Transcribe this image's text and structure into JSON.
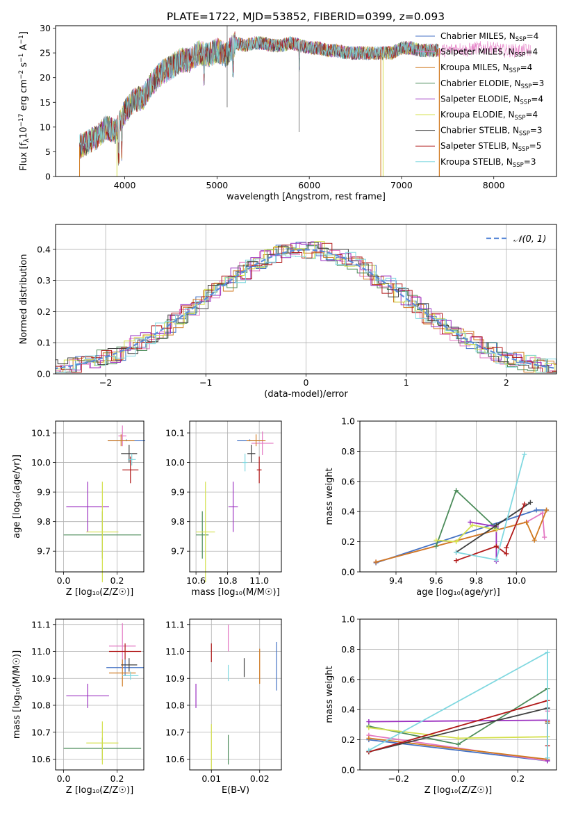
{
  "figure": {
    "title": "PLATE=1722, MJD=53852, FIBERID=0399, z=0.093"
  },
  "legend": [
    {
      "label": "Chabrier MILES, N",
      "sub": "SSP",
      "suffix": "=4",
      "color": "#4472c4"
    },
    {
      "label": "Salpeter MILES, N",
      "sub": "SSP",
      "suffix": "=4",
      "color": "#e377c2"
    },
    {
      "label": "Kroupa MILES, N",
      "sub": "SSP",
      "suffix": "=4",
      "color": "#d07a20"
    },
    {
      "label": "Chabrier ELODIE, N",
      "sub": "SSP",
      "suffix": "=3",
      "color": "#4c8c5a"
    },
    {
      "label": "Salpeter ELODIE, N",
      "sub": "SSP",
      "suffix": "=4",
      "color": "#9b30c0"
    },
    {
      "label": "Kroupa ELODIE, N",
      "sub": "SSP",
      "suffix": "=4",
      "color": "#d4e04c"
    },
    {
      "label": "Chabrier STELIB, N",
      "sub": "SSP",
      "suffix": "=3",
      "color": "#404040"
    },
    {
      "label": "Salpeter STELIB, N",
      "sub": "SSP",
      "suffix": "=5",
      "color": "#b01818"
    },
    {
      "label": "Kroupa STELIB, N",
      "sub": "SSP",
      "suffix": "=3",
      "color": "#80d8e0"
    }
  ],
  "chart_data": [
    {
      "id": "spectrum",
      "type": "line",
      "xlabel": "wavelength [Angstrom, rest frame]",
      "ylabel_parts": [
        "Flux [f",
        "λ",
        "10",
        "−17",
        " erg cm",
        "−2",
        " s",
        "−1",
        " A",
        "−1",
        "]"
      ],
      "xlim": [
        3250,
        8680
      ],
      "ylim": [
        0,
        30.5
      ],
      "xticks": [
        4000,
        5000,
        6000,
        7000,
        8000
      ],
      "yticks": [
        0,
        5,
        10,
        15,
        20,
        25,
        30
      ],
      "continuum_points": [
        [
          3510,
          6
        ],
        [
          3700,
          8
        ],
        [
          3800,
          10
        ],
        [
          3900,
          9
        ],
        [
          4000,
          13
        ],
        [
          4100,
          15.5
        ],
        [
          4200,
          16
        ],
        [
          4300,
          19
        ],
        [
          4400,
          21
        ],
        [
          4500,
          22
        ],
        [
          4600,
          23.5
        ],
        [
          4700,
          23.5
        ],
        [
          4800,
          25
        ],
        [
          4900,
          24.5
        ],
        [
          5000,
          25.5
        ],
        [
          5100,
          24.5
        ],
        [
          5200,
          27
        ],
        [
          5300,
          26.5
        ],
        [
          5400,
          27
        ],
        [
          5500,
          27
        ],
        [
          5600,
          26.5
        ],
        [
          5700,
          26.5
        ],
        [
          5800,
          27
        ],
        [
          5900,
          26.5
        ],
        [
          6000,
          26
        ],
        [
          6100,
          26
        ],
        [
          6200,
          25.5
        ],
        [
          6300,
          25.5
        ],
        [
          6400,
          25
        ],
        [
          6500,
          25
        ],
        [
          6600,
          25
        ],
        [
          6700,
          25
        ],
        [
          6800,
          25
        ],
        [
          6900,
          25
        ],
        [
          7000,
          26
        ],
        [
          7100,
          26
        ],
        [
          7200,
          25.5
        ],
        [
          7300,
          25.5
        ],
        [
          7400,
          25.5
        ],
        [
          7500,
          25.5
        ],
        [
          7600,
          26
        ],
        [
          7700,
          25.5
        ],
        [
          7800,
          26
        ],
        [
          7900,
          26
        ],
        [
          8000,
          26
        ],
        [
          8100,
          25.5
        ],
        [
          8200,
          25.5
        ],
        [
          8300,
          25.5
        ],
        [
          8400,
          25.5
        ]
      ]
    },
    {
      "id": "residuals",
      "type": "step",
      "xlabel": "(data-model)/error",
      "ylabel": "Normed distribution",
      "xlim": [
        -2.5,
        2.5
      ],
      "ylim": [
        0,
        0.48
      ],
      "xticks": [
        -2,
        -1,
        0,
        1,
        2
      ],
      "xtick_labels": [
        "−2",
        "−1",
        "0",
        "1",
        "2"
      ],
      "yticks": [
        0.0,
        0.1,
        0.2,
        0.3,
        0.4
      ],
      "ytick_labels": [
        "0.0",
        "0.1",
        "0.2",
        "0.3",
        "0.4"
      ],
      "reference_label": "𝒩(0, 1)",
      "reference_color": "#5b8ad8"
    },
    {
      "id": "z-age",
      "type": "errorbar",
      "xlabel": "Z [log₁₀(Z/Z☉)]",
      "ylabel": "age  [log₁₀(age/yr)]",
      "xlim": [
        -0.03,
        0.3
      ],
      "ylim": [
        9.63,
        10.14
      ],
      "xticks": [
        0.0,
        0.2
      ],
      "xtick_labels": [
        "0.0",
        "0.2"
      ],
      "yticks": [
        9.7,
        9.8,
        9.9,
        10.0,
        10.1
      ],
      "ytick_labels": [
        "9.7",
        "9.8",
        "9.9",
        "10.0",
        "10.1"
      ],
      "points": [
        {
          "x": 0.235,
          "y": 10.075,
          "xerr": 0.07,
          "yerr": 0.003,
          "color": "#4472c4"
        },
        {
          "x": 0.22,
          "y": 10.09,
          "xerr": 0.015,
          "yerr": 0.035,
          "color": "#e377c2"
        },
        {
          "x": 0.215,
          "y": 10.075,
          "xerr": 0.05,
          "yerr": 0.02,
          "color": "#d07a20"
        },
        {
          "x": 0.145,
          "y": 9.755,
          "xerr": 0.145,
          "yerr": 0.08,
          "color": "#4c8c5a"
        },
        {
          "x": 0.09,
          "y": 9.85,
          "xerr": 0.08,
          "yerr": 0.085,
          "color": "#9b30c0"
        },
        {
          "x": 0.145,
          "y": 9.765,
          "xerr": 0.06,
          "yerr": 0.17,
          "color": "#d4e04c"
        },
        {
          "x": 0.245,
          "y": 10.03,
          "xerr": 0.03,
          "yerr": 0.03,
          "color": "#404040"
        },
        {
          "x": 0.25,
          "y": 9.975,
          "xerr": 0.03,
          "yerr": 0.045,
          "color": "#b01818"
        },
        {
          "x": 0.255,
          "y": 10.01,
          "xerr": 0.015,
          "yerr": 0.02,
          "color": "#80d8e0"
        }
      ]
    },
    {
      "id": "mass-age",
      "type": "errorbar",
      "xlabel": "mass [log₁₀(M/M☉)]",
      "ylabel": "",
      "xlim": [
        10.56,
        11.14
      ],
      "ylim": [
        9.63,
        10.14
      ],
      "xticks": [
        10.6,
        10.8,
        11.0
      ],
      "xtick_labels": [
        "10.6",
        "10.8",
        "11.0"
      ],
      "yticks": [
        9.7,
        9.8,
        9.9,
        10.0,
        10.1
      ],
      "ytick_labels": [
        "9.7",
        "9.8",
        "9.9",
        "10.0",
        "10.1"
      ],
      "points": [
        {
          "x": 10.94,
          "y": 10.075,
          "xerr": 0.08,
          "yerr": 0.003,
          "color": "#4472c4"
        },
        {
          "x": 11.02,
          "y": 10.065,
          "xerr": 0.07,
          "yerr": 0.04,
          "color": "#e377c2"
        },
        {
          "x": 10.98,
          "y": 10.075,
          "xerr": 0.06,
          "yerr": 0.02,
          "color": "#d07a20"
        },
        {
          "x": 10.64,
          "y": 9.755,
          "xerr": 0.04,
          "yerr": 0.08,
          "color": "#4c8c5a"
        },
        {
          "x": 10.835,
          "y": 9.85,
          "xerr": 0.03,
          "yerr": 0.085,
          "color": "#9b30c0"
        },
        {
          "x": 10.66,
          "y": 9.765,
          "xerr": 0.06,
          "yerr": 0.17,
          "color": "#d4e04c"
        },
        {
          "x": 10.95,
          "y": 10.03,
          "xerr": 0.025,
          "yerr": 0.03,
          "color": "#404040"
        },
        {
          "x": 11.0,
          "y": 9.975,
          "xerr": 0.015,
          "yerr": 0.045,
          "color": "#b01818"
        },
        {
          "x": 10.91,
          "y": 10.0,
          "xerr": 0.015,
          "yerr": 0.03,
          "color": "#80d8e0"
        }
      ]
    },
    {
      "id": "age-weight",
      "type": "line",
      "xlabel": "age  [log₁₀(age/yr)]",
      "ylabel": "mass weight",
      "xlim": [
        9.22,
        10.2
      ],
      "ylim": [
        0,
        1.0
      ],
      "xticks": [
        9.4,
        9.6,
        9.8,
        10.0
      ],
      "xtick_labels": [
        "9.4",
        "9.6",
        "9.8",
        "10.0"
      ],
      "yticks": [
        0.0,
        0.2,
        0.4,
        0.6,
        0.8,
        1.0
      ],
      "ytick_labels": [
        "0.0",
        "0.2",
        "0.4",
        "0.6",
        "0.8",
        "1.0"
      ],
      "series": [
        {
          "color": "#4472c4",
          "points": [
            [
              9.3,
              0.06
            ],
            [
              10.1,
              0.41
            ],
            [
              10.15,
              0.41
            ]
          ]
        },
        {
          "color": "#e377c2",
          "points": [
            [
              9.3,
              0.065
            ],
            [
              10.05,
              0.33
            ],
            [
              10.13,
              0.39
            ],
            [
              10.14,
              0.23
            ]
          ]
        },
        {
          "color": "#d07a20",
          "points": [
            [
              9.3,
              0.065
            ],
            [
              10.05,
              0.33
            ],
            [
              10.09,
              0.21
            ],
            [
              10.15,
              0.41
            ]
          ]
        },
        {
          "color": "#4c8c5a",
          "points": [
            [
              9.6,
              0.17
            ],
            [
              9.7,
              0.54
            ],
            [
              9.9,
              0.29
            ]
          ]
        },
        {
          "color": "#9b30c0",
          "points": [
            [
              9.9,
              0.07
            ],
            [
              9.9,
              0.3
            ],
            [
              9.77,
              0.33
            ]
          ]
        },
        {
          "color": "#d4e04c",
          "points": [
            [
              9.6,
              0.21
            ],
            [
              9.7,
              0.2
            ],
            [
              9.78,
              0.31
            ],
            [
              9.9,
              0.28
            ]
          ]
        },
        {
          "color": "#404040",
          "points": [
            [
              9.7,
              0.13
            ],
            [
              10.07,
              0.46
            ],
            [
              9.9,
              0.31
            ]
          ]
        },
        {
          "color": "#b01818",
          "points": [
            [
              9.7,
              0.075
            ],
            [
              9.9,
              0.17
            ],
            [
              9.95,
              0.12
            ],
            [
              9.95,
              0.16
            ],
            [
              10.04,
              0.45
            ]
          ]
        },
        {
          "color": "#80d8e0",
          "points": [
            [
              9.7,
              0.13
            ],
            [
              9.9,
              0.08
            ],
            [
              10.04,
              0.78
            ]
          ]
        }
      ]
    },
    {
      "id": "z-mass",
      "type": "errorbar",
      "xlabel": "Z [log₁₀(Z/Z☉)]",
      "ylabel": "mass [log₁₀(M/M☉)]",
      "xlim": [
        -0.03,
        0.3
      ],
      "ylim": [
        10.56,
        11.12
      ],
      "xticks": [
        0.0,
        0.2
      ],
      "xtick_labels": [
        "0.0",
        "0.2"
      ],
      "yticks": [
        10.6,
        10.7,
        10.8,
        10.9,
        11.0,
        11.1
      ],
      "ytick_labels": [
        "10.6",
        "10.7",
        "10.8",
        "10.9",
        "11.0",
        "11.1"
      ],
      "points": [
        {
          "x": 0.23,
          "y": 10.94,
          "xerr": 0.07,
          "yerr": 0.03,
          "color": "#4472c4"
        },
        {
          "x": 0.22,
          "y": 11.02,
          "xerr": 0.05,
          "yerr": 0.085,
          "color": "#e377c2"
        },
        {
          "x": 0.22,
          "y": 10.92,
          "xerr": 0.05,
          "yerr": 0.05,
          "color": "#d07a20"
        },
        {
          "x": 0.145,
          "y": 10.64,
          "xerr": 0.145,
          "yerr": 0.04,
          "color": "#4c8c5a"
        },
        {
          "x": 0.09,
          "y": 10.835,
          "xerr": 0.08,
          "yerr": 0.045,
          "color": "#9b30c0"
        },
        {
          "x": 0.145,
          "y": 10.66,
          "xerr": 0.06,
          "yerr": 0.08,
          "color": "#d4e04c"
        },
        {
          "x": 0.245,
          "y": 10.95,
          "xerr": 0.03,
          "yerr": 0.025,
          "color": "#404040"
        },
        {
          "x": 0.23,
          "y": 11.0,
          "xerr": 0.06,
          "yerr": 0.03,
          "color": "#b01818"
        },
        {
          "x": 0.25,
          "y": 10.91,
          "xerr": 0.03,
          "yerr": 0.015,
          "color": "#80d8e0"
        }
      ]
    },
    {
      "id": "ebv-mass",
      "type": "errorbar",
      "xlabel": "E(B-V)",
      "ylabel": "",
      "xlim": [
        0.0055,
        0.0245
      ],
      "ylim": [
        10.56,
        11.12
      ],
      "xticks": [
        0.01,
        0.02
      ],
      "xtick_labels": [
        "0.01",
        "0.02"
      ],
      "yticks": [
        10.6,
        10.7,
        10.8,
        10.9,
        11.0,
        11.1
      ],
      "ytick_labels": [
        "10.6",
        "10.7",
        "10.8",
        "10.9",
        "11.0",
        "11.1"
      ],
      "points": [
        {
          "x": 0.0235,
          "y": 10.945,
          "xerr": 0.0,
          "yerr": 0.09,
          "color": "#4472c4"
        },
        {
          "x": 0.0135,
          "y": 11.05,
          "xerr": 0.0,
          "yerr": 0.05,
          "color": "#e377c2"
        },
        {
          "x": 0.02,
          "y": 10.945,
          "xerr": 0.0,
          "yerr": 0.065,
          "color": "#d07a20"
        },
        {
          "x": 0.0135,
          "y": 10.635,
          "xerr": 0.0,
          "yerr": 0.055,
          "color": "#4c8c5a"
        },
        {
          "x": 0.0068,
          "y": 10.835,
          "xerr": 0.0,
          "yerr": 0.045,
          "color": "#9b30c0"
        },
        {
          "x": 0.01,
          "y": 10.645,
          "xerr": 0.0,
          "yerr": 0.085,
          "color": "#d4e04c"
        },
        {
          "x": 0.0168,
          "y": 10.94,
          "xerr": 0.0,
          "yerr": 0.035,
          "color": "#404040"
        },
        {
          "x": 0.01,
          "y": 10.995,
          "xerr": 0.0,
          "yerr": 0.035,
          "color": "#b01818"
        },
        {
          "x": 0.0135,
          "y": 10.92,
          "xerr": 0.0,
          "yerr": 0.03,
          "color": "#80d8e0"
        }
      ]
    },
    {
      "id": "z-weight",
      "type": "line",
      "xlabel": "Z [log₁₀(Z/Z☉)]",
      "ylabel": "mass weight",
      "xlim": [
        -0.33,
        0.33
      ],
      "ylim": [
        0,
        1.0
      ],
      "xticks": [
        -0.2,
        0.0,
        0.2
      ],
      "xtick_labels": [
        "−0.2",
        "0.0",
        "0.2"
      ],
      "yticks": [
        0.0,
        0.2,
        0.4,
        0.6,
        0.8,
        1.0
      ],
      "ytick_labels": [
        "0.0",
        "0.2",
        "0.4",
        "0.6",
        "0.8",
        "1.0"
      ],
      "series": [
        {
          "color": "#4472c4",
          "points": [
            [
              -0.3,
              0.2
            ],
            [
              0.3,
              0.06
            ],
            [
              0.3,
              0.41
            ]
          ]
        },
        {
          "color": "#e377c2",
          "points": [
            [
              -0.3,
              0.23
            ],
            [
              0.3,
              0.06
            ],
            [
              0.3,
              0.39
            ]
          ]
        },
        {
          "color": "#d07a20",
          "points": [
            [
              -0.3,
              0.21
            ],
            [
              0.3,
              0.07
            ],
            [
              0.3,
              0.32
            ]
          ]
        },
        {
          "color": "#4c8c5a",
          "points": [
            [
              -0.3,
              0.29
            ],
            [
              0.0,
              0.17
            ],
            [
              0.3,
              0.54
            ]
          ]
        },
        {
          "color": "#9b30c0",
          "points": [
            [
              -0.3,
              0.32
            ],
            [
              0.3,
              0.33
            ],
            [
              0.3,
              0.06
            ]
          ]
        },
        {
          "color": "#d4e04c",
          "points": [
            [
              -0.3,
              0.28
            ],
            [
              0.0,
              0.21
            ],
            [
              0.3,
              0.22
            ]
          ]
        },
        {
          "color": "#404040",
          "points": [
            [
              -0.3,
              0.12
            ],
            [
              0.3,
              0.41
            ],
            [
              0.3,
              0.31
            ]
          ]
        },
        {
          "color": "#b01818",
          "points": [
            [
              -0.3,
              0.12
            ],
            [
              0.3,
              0.46
            ],
            [
              0.3,
              0.16
            ]
          ]
        },
        {
          "color": "#80d8e0",
          "points": [
            [
              -0.3,
              0.13
            ],
            [
              0.3,
              0.78
            ],
            [
              0.3,
              0.08
            ]
          ]
        }
      ]
    }
  ]
}
